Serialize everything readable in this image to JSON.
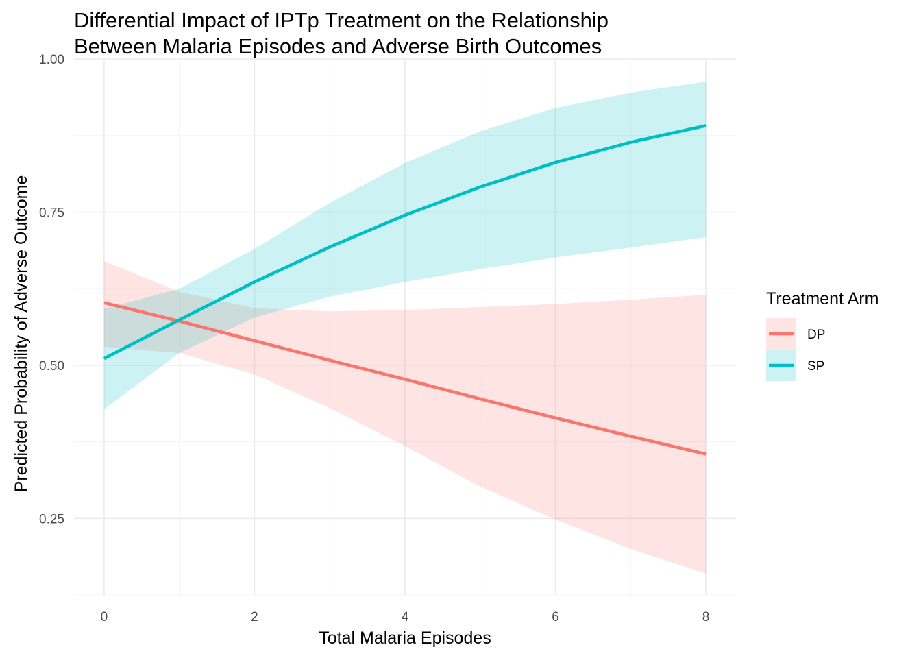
{
  "chart_data": {
    "type": "line",
    "title_lines": [
      "Differential Impact of IPTp Treatment on the Relationship",
      "Between Malaria Episodes and Adverse Birth Outcomes"
    ],
    "xlabel": "Total Malaria Episodes",
    "ylabel": "Predicted Probability of Adverse Outcome",
    "xlim": [
      -0.4,
      8.4
    ],
    "ylim": [
      0.125,
      1.0
    ],
    "x_ticks": [
      0,
      2,
      4,
      6,
      8
    ],
    "x_tick_labels": [
      "0",
      "2",
      "4",
      "6",
      "8"
    ],
    "y_ticks": [
      0.25,
      0.5,
      0.75,
      1.0
    ],
    "y_tick_labels": [
      "0.25",
      "0.50",
      "0.75",
      "1.00"
    ],
    "x_minor": [
      1,
      3,
      5,
      7
    ],
    "y_minor": [
      0.125,
      0.375,
      0.625,
      0.875
    ],
    "grid": true,
    "legend": {
      "title": "Treatment Arm",
      "position": "right",
      "entries": [
        "DP",
        "SP"
      ]
    },
    "series": [
      {
        "name": "DP",
        "color": "#F8766D",
        "x": [
          0,
          1,
          2,
          3,
          4,
          5,
          6,
          7,
          8
        ],
        "y": [
          0.602,
          0.572,
          0.54,
          0.508,
          0.477,
          0.445,
          0.414,
          0.384,
          0.355
        ],
        "lower": [
          0.53,
          0.52,
          0.485,
          0.43,
          0.368,
          0.302,
          0.248,
          0.2,
          0.16
        ],
        "upper": [
          0.67,
          0.62,
          0.593,
          0.588,
          0.59,
          0.595,
          0.6,
          0.607,
          0.615
        ]
      },
      {
        "name": "SP",
        "color": "#00BFC4",
        "x": [
          0,
          1,
          2,
          3,
          4,
          5,
          6,
          7,
          8
        ],
        "y": [
          0.511,
          0.574,
          0.636,
          0.693,
          0.745,
          0.791,
          0.831,
          0.864,
          0.891
        ],
        "lower": [
          0.428,
          0.52,
          0.578,
          0.612,
          0.636,
          0.657,
          0.676,
          0.692,
          0.709
        ],
        "upper": [
          0.592,
          0.625,
          0.69,
          0.765,
          0.83,
          0.882,
          0.92,
          0.945,
          0.963
        ]
      }
    ]
  }
}
